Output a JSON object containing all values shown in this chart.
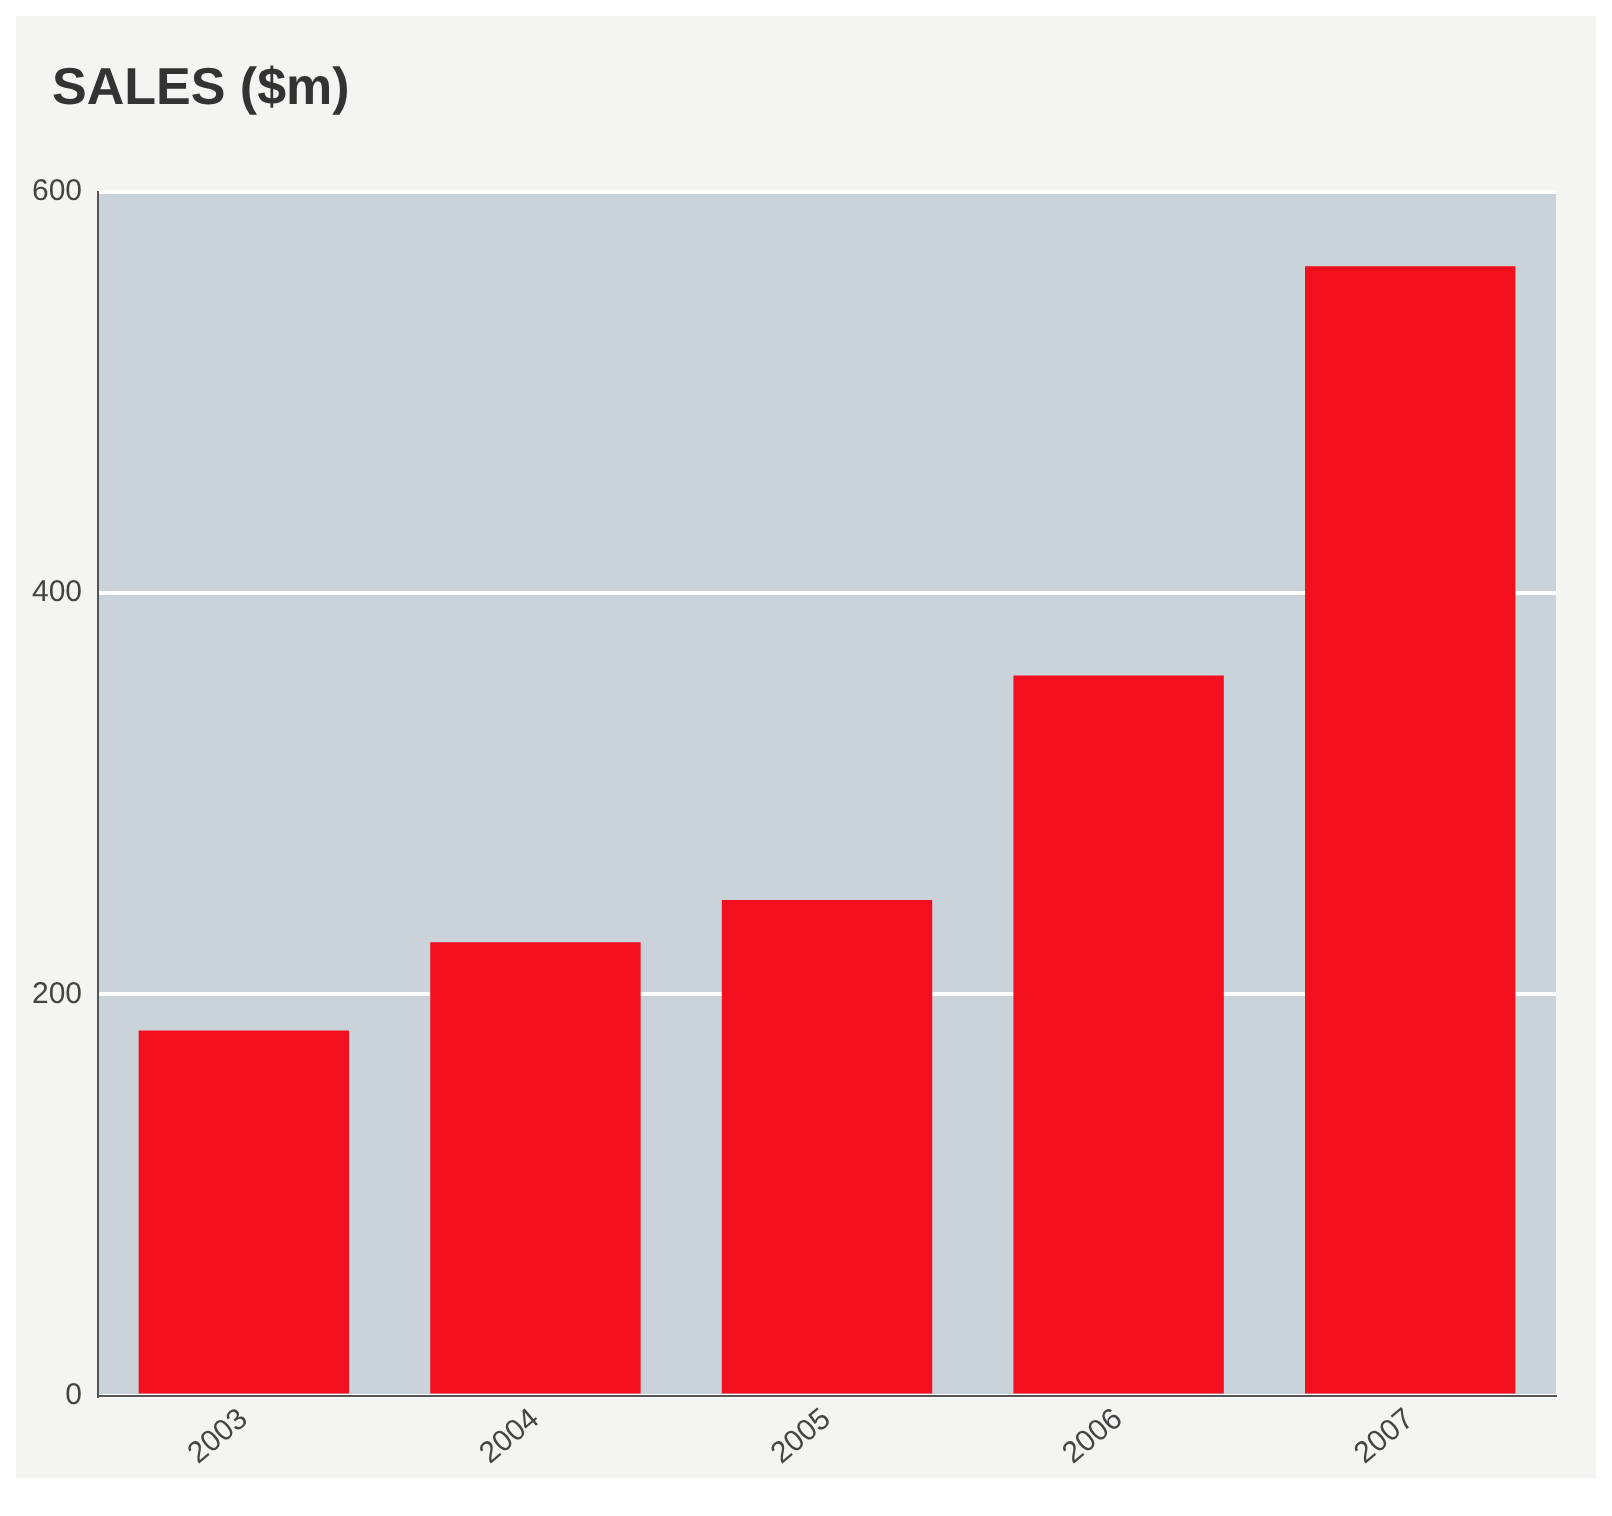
{
  "chart_data": {
    "type": "bar",
    "title": "SALES ($m)",
    "categories": [
      "2003",
      "2004",
      "2005",
      "2006",
      "2007"
    ],
    "values": [
      182,
      226,
      247,
      359,
      563
    ],
    "color": "#f2101e",
    "ylim": [
      0,
      600
    ],
    "yticks": [
      0,
      200,
      400,
      600
    ],
    "grid": "y"
  }
}
